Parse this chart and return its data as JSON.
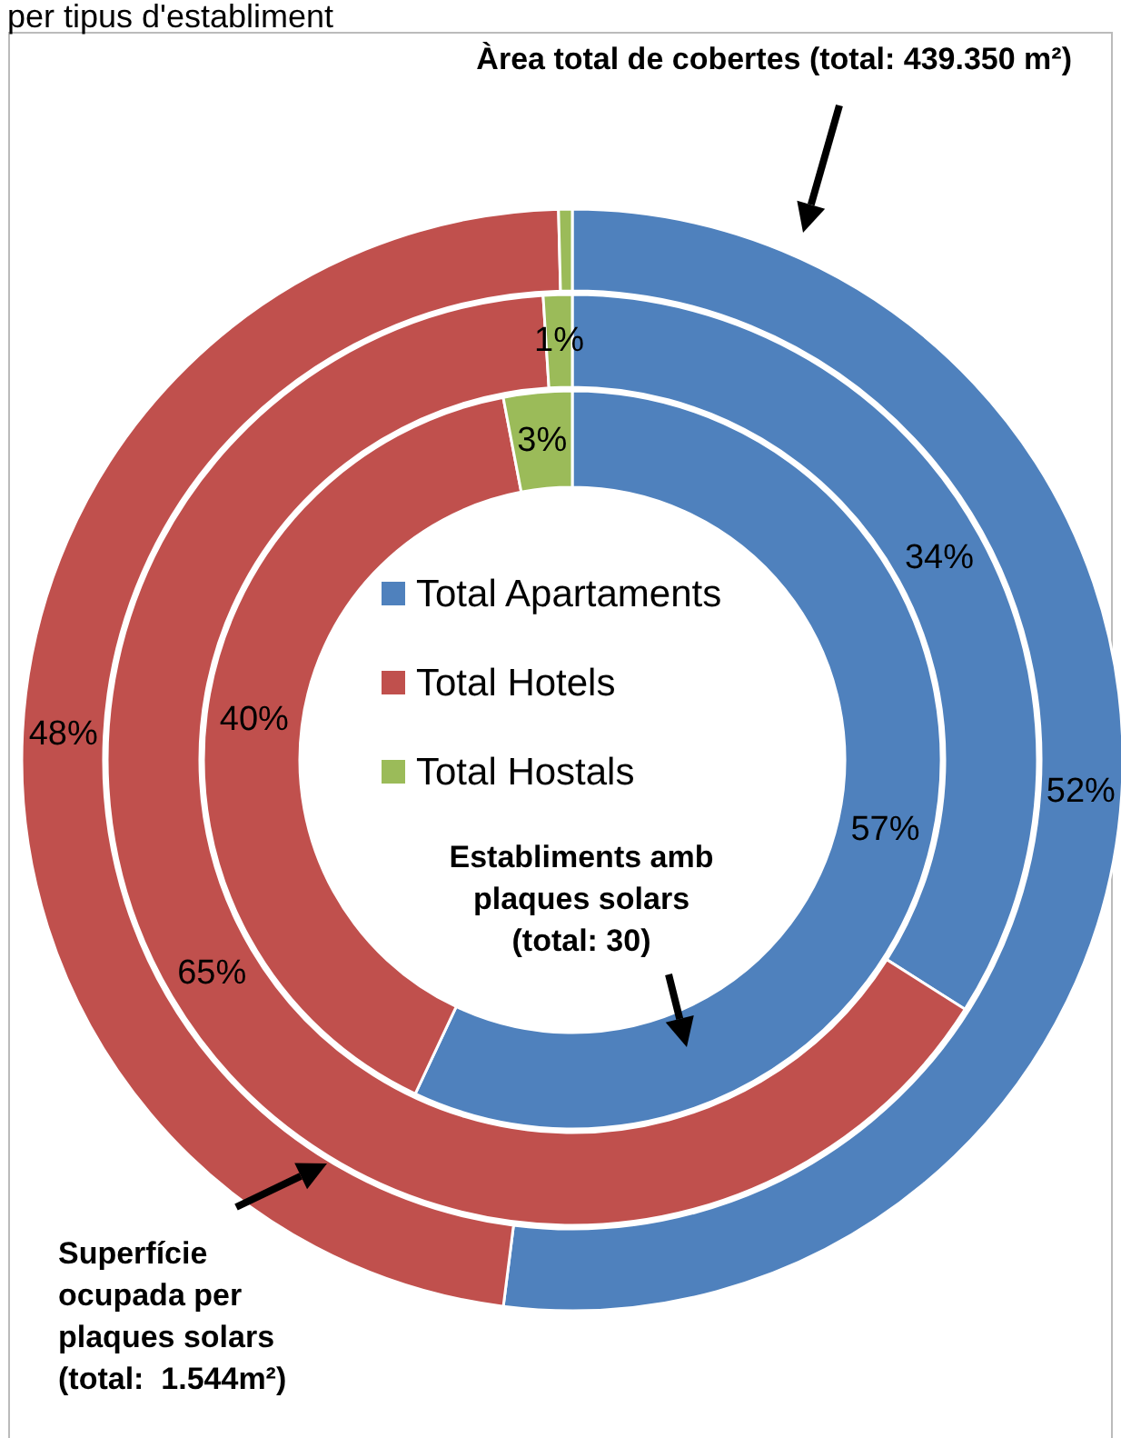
{
  "chart_data": {
    "type": "donut",
    "title": "per tipus d'establiment",
    "categories": [
      "Total Apartaments",
      "Total Hotels",
      "Total Hostals"
    ],
    "colors": [
      "#4f81bd",
      "#c0504d",
      "#9bbb59"
    ],
    "series": [
      {
        "values": [
          52,
          47.6,
          0.4
        ],
        "value_labels": [
          "52%",
          "48%",
          null
        ]
      },
      {
        "values": [
          34,
          65,
          1
        ],
        "value_labels": [
          "34%",
          "65%",
          "1%"
        ]
      },
      {
        "values": [
          57,
          40,
          3
        ],
        "value_labels": [
          "57%",
          "40%",
          "3%"
        ]
      }
    ],
    "legend": "center",
    "annotations": [
      "Àrea total de cobertes (total: 439.350 m²)",
      "Superfície ocupada per plaques solars (total:  1.544m²)",
      "Establiments amb plaques solars (total: 30)"
    ]
  }
}
